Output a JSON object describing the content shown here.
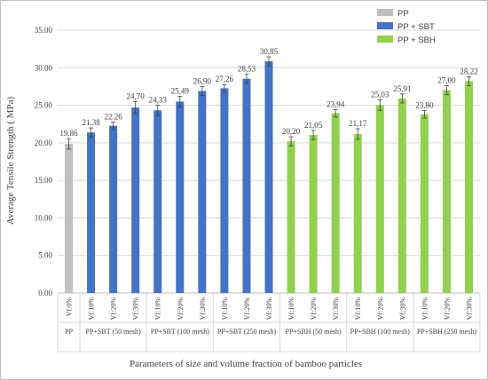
{
  "chart_data": {
    "type": "bar",
    "ylabel": "Average Tensile Strength ( MPa)",
    "xlabel": "Parameters of size and volume fraction of bamboo particles",
    "ylim": [
      0,
      35
    ],
    "yticks": [
      "0.00",
      "5.00",
      "10.00",
      "15.00",
      "20.00",
      "25.00",
      "30.00",
      "35.00"
    ],
    "grid": true,
    "legend_position": "top-right",
    "legend": [
      {
        "name": "PP",
        "color": "#c0c0c0"
      },
      {
        "name": "PP + SBT",
        "color": "#4472c4"
      },
      {
        "name": "PP + SBH",
        "color": "#92d050"
      }
    ],
    "groups": [
      {
        "label": "PP",
        "series": 0,
        "bars": [
          {
            "category": "Vf:0%",
            "value": 19.86,
            "label": "19.86",
            "error": 0.7
          }
        ]
      },
      {
        "label": "PP+SBT (50 mesh)",
        "series": 1,
        "bars": [
          {
            "category": "Vf:10%",
            "value": 21.38,
            "label": "21.38",
            "error": 0.6
          },
          {
            "category": "Vf:20%",
            "value": 22.26,
            "label": "22.26",
            "error": 0.5
          },
          {
            "category": "Vf:30%",
            "value": 24.7,
            "label": "24,70",
            "error": 0.8
          }
        ]
      },
      {
        "label": "PP+SBT (100 mesh)",
        "series": 1,
        "bars": [
          {
            "category": "Vf:10%",
            "value": 24.33,
            "label": "24,33",
            "error": 0.7
          },
          {
            "category": "Vf:20%",
            "value": 25.49,
            "label": "25,49",
            "error": 0.7
          },
          {
            "category": "Vf:30%",
            "value": 26.9,
            "label": "26,90",
            "error": 0.6
          }
        ]
      },
      {
        "label": "PP+SBT (250 mesh)",
        "series": 1,
        "bars": [
          {
            "category": "Vf:10%",
            "value": 27.26,
            "label": "27,26",
            "error": 0.5
          },
          {
            "category": "Vf:20%",
            "value": 28.53,
            "label": "28,53",
            "error": 0.6
          },
          {
            "category": "Vf:30%",
            "value": 30.85,
            "label": "30,85",
            "error": 0.6
          }
        ]
      },
      {
        "label": "PP+SBH (50 mesh)",
        "series": 2,
        "bars": [
          {
            "category": "Vf:10%",
            "value": 20.2,
            "label": "20,20",
            "error": 0.6
          },
          {
            "category": "Vf:20%",
            "value": 21.05,
            "label": "21,05",
            "error": 0.6
          },
          {
            "category": "Vf:30%",
            "value": 23.94,
            "label": "23,94",
            "error": 0.5
          }
        ]
      },
      {
        "label": "PP+SBH (100 mesh)",
        "series": 2,
        "bars": [
          {
            "category": "Vf:10%",
            "value": 21.17,
            "label": "21,17",
            "error": 0.7
          },
          {
            "category": "Vf:20%",
            "value": 25.03,
            "label": "25,03",
            "error": 0.7
          },
          {
            "category": "Vf:30%",
            "value": 25.91,
            "label": "25,91",
            "error": 0.6
          }
        ]
      },
      {
        "label": "PP+SBH (250 mesh)",
        "series": 2,
        "bars": [
          {
            "category": "Vf:10%",
            "value": 23.8,
            "label": "23,80",
            "error": 0.5
          },
          {
            "category": "Vf:20%",
            "value": 27.0,
            "label": "27,00",
            "error": 0.6
          },
          {
            "category": "Vf:30%",
            "value": 28.22,
            "label": "28,22",
            "error": 0.6
          }
        ]
      }
    ]
  }
}
